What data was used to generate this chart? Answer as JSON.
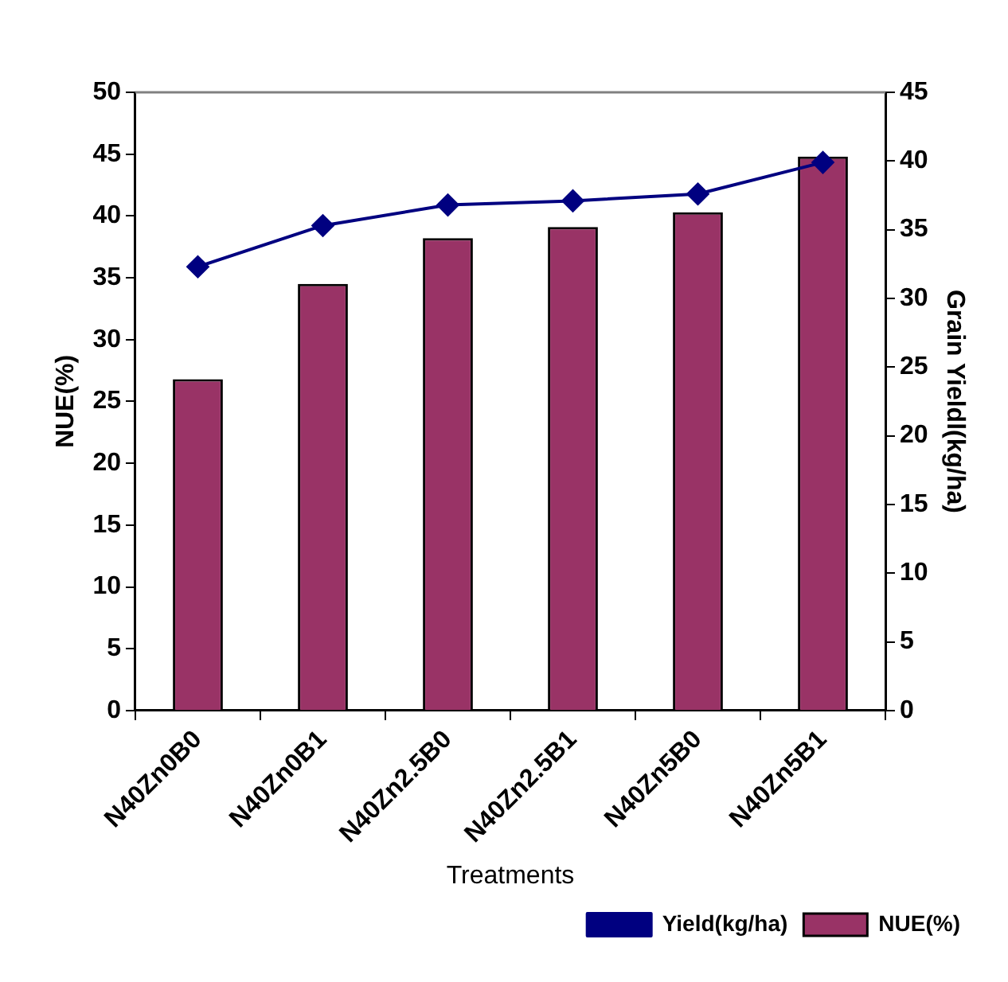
{
  "chart_data": {
    "type": "bar",
    "categories": [
      "N40Zn0B0",
      "N40Zn0B1",
      "N40Zn2.5B0",
      "N40Zn2.5B1",
      "N40Zn5B0",
      "N40Zn5B1"
    ],
    "series": [
      {
        "name": "NUE(%)",
        "color": "#993366",
        "values": [
          26.8,
          34.5,
          38.2,
          39.1,
          40.3,
          44.8
        ]
      },
      {
        "name": "Yield(kg/ha)",
        "type": "line",
        "axis": "y2",
        "color": "#000080",
        "marker": "diamond",
        "values": [
          32.3,
          35.3,
          36.8,
          37.1,
          37.6,
          39.9
        ]
      }
    ],
    "xlabel": "Treatments",
    "ylabel": "NUE(%)",
    "y2label": "Grain Yieldl(kg/ha)",
    "ylim": [
      0,
      50
    ],
    "yticks": [
      0,
      5,
      10,
      15,
      20,
      25,
      30,
      35,
      40,
      45,
      50
    ],
    "y2lim": [
      0,
      45
    ],
    "y2ticks": [
      0,
      5,
      10,
      15,
      20,
      25,
      30,
      35,
      40,
      45
    ],
    "grid": false,
    "legend": "bottom right"
  }
}
